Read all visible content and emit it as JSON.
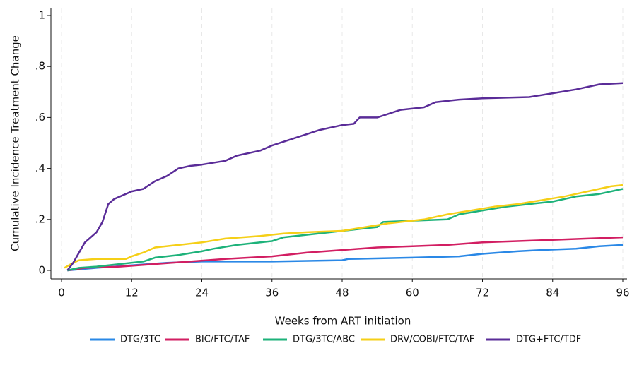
{
  "chart_data": {
    "type": "line",
    "ylabel": "Cumulative Incidence Treatment Change",
    "xlabel": "Weeks from ART initiation",
    "xlim": [
      0,
      96
    ],
    "xticks": [
      0,
      12,
      24,
      36,
      48,
      60,
      72,
      84,
      96
    ],
    "ylim": [
      0,
      1
    ],
    "yticks": [
      0,
      {
        "value": 0.2,
        "label": ".2"
      },
      {
        "value": 0.4,
        "label": ".4"
      },
      {
        "value": 0.6,
        "label": ".6"
      },
      {
        "value": 0.8,
        "label": ".8"
      },
      1
    ],
    "grid": true,
    "legend": "bottom",
    "series": [
      {
        "name": "DTG/3TC",
        "color": "#2a88e6",
        "x": [
          1,
          6,
          12,
          18,
          24,
          36,
          48,
          49,
          60,
          68,
          72,
          78,
          82,
          88,
          92,
          96
        ],
        "values": [
          0,
          0.01,
          0.02,
          0.03,
          0.035,
          0.035,
          0.04,
          0.045,
          0.05,
          0.055,
          0.065,
          0.075,
          0.08,
          0.085,
          0.095,
          0.1
        ]
      },
      {
        "name": "BIC/FTC/TAF",
        "color": "#d21e62",
        "x": [
          1,
          4,
          10,
          16,
          22,
          28,
          36,
          42,
          48,
          54,
          60,
          66,
          72,
          78,
          84,
          90,
          96
        ],
        "values": [
          0,
          0.01,
          0.015,
          0.025,
          0.035,
          0.045,
          0.055,
          0.07,
          0.08,
          0.09,
          0.095,
          0.1,
          0.11,
          0.115,
          0.12,
          0.125,
          0.13
        ]
      },
      {
        "name": "DTG/3TC/ABC",
        "color": "#1db27a",
        "x": [
          1,
          3,
          6,
          10,
          14,
          16,
          20,
          24,
          26,
          30,
          34,
          36,
          38,
          42,
          46,
          50,
          54,
          55,
          60,
          66,
          68,
          72,
          76,
          80,
          84,
          88,
          92,
          96
        ],
        "values": [
          0,
          0.01,
          0.015,
          0.025,
          0.035,
          0.05,
          0.06,
          0.075,
          0.085,
          0.1,
          0.11,
          0.115,
          0.13,
          0.14,
          0.15,
          0.16,
          0.17,
          0.19,
          0.195,
          0.2,
          0.22,
          0.235,
          0.25,
          0.26,
          0.27,
          0.29,
          0.3,
          0.32
        ]
      },
      {
        "name": "DRV/COBI/FTC/TAF",
        "color": "#f5cf17",
        "x": [
          0.5,
          2,
          3,
          6,
          11,
          12,
          14,
          16,
          20,
          24,
          28,
          34,
          38,
          42,
          48,
          52,
          56,
          62,
          66,
          70,
          74,
          78,
          82,
          86,
          88,
          92,
          94,
          96
        ],
        "values": [
          0.01,
          0.03,
          0.04,
          0.045,
          0.045,
          0.055,
          0.07,
          0.09,
          0.1,
          0.11,
          0.125,
          0.135,
          0.145,
          0.15,
          0.155,
          0.17,
          0.185,
          0.2,
          0.22,
          0.235,
          0.25,
          0.26,
          0.275,
          0.29,
          0.3,
          0.32,
          0.33,
          0.335
        ]
      },
      {
        "name": "DTG+FTC/TDF",
        "color": "#5a2c98",
        "x": [
          1,
          2,
          3,
          4,
          5,
          6,
          7,
          8,
          9,
          10,
          12,
          14,
          16,
          18,
          20,
          22,
          24,
          28,
          30,
          34,
          36,
          40,
          44,
          48,
          50,
          51,
          54,
          58,
          62,
          64,
          68,
          72,
          80,
          84,
          88,
          92,
          96
        ],
        "values": [
          0,
          0.03,
          0.07,
          0.11,
          0.13,
          0.15,
          0.19,
          0.26,
          0.28,
          0.29,
          0.31,
          0.32,
          0.35,
          0.37,
          0.4,
          0.41,
          0.415,
          0.43,
          0.45,
          0.47,
          0.49,
          0.52,
          0.55,
          0.57,
          0.575,
          0.6,
          0.6,
          0.63,
          0.64,
          0.66,
          0.67,
          0.675,
          0.68,
          0.695,
          0.71,
          0.73,
          0.735
        ]
      }
    ]
  }
}
